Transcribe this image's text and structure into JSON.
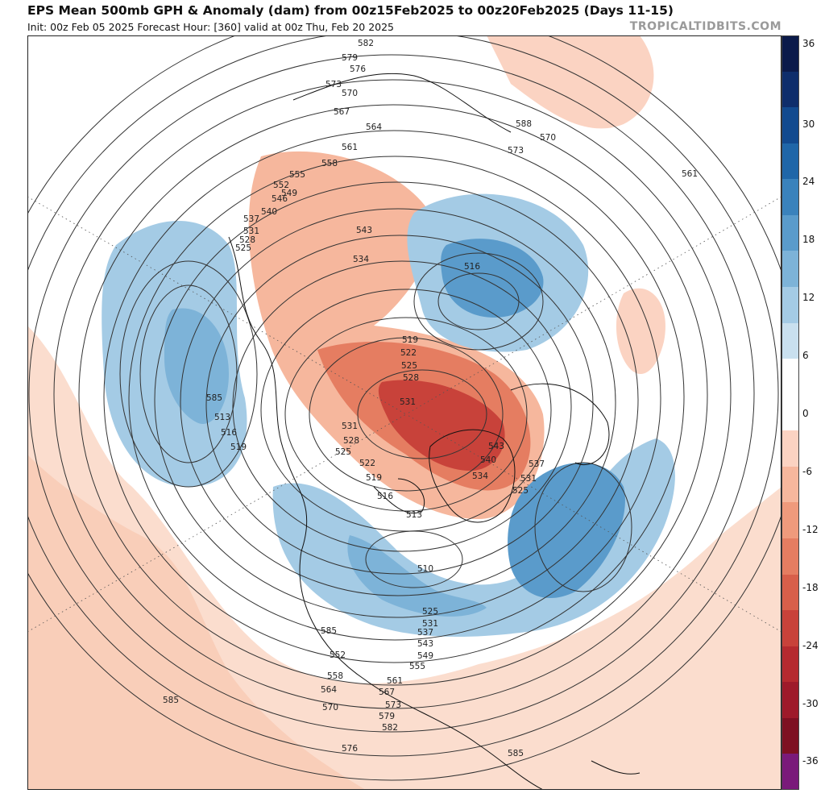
{
  "header": {
    "title": "EPS Mean 500mb GPH & Anomaly (dam) from 00z15Feb2025 to 00z20Feb2025 (Days 11-15)",
    "subtitle": "Init: 00z Feb 05 2025   Forecast Hour: [360]   valid at 00z Thu, Feb 20 2025",
    "watermark": "TROPICALTIDBITS.COM"
  },
  "colorbar": {
    "ticks": [
      "36",
      "30",
      "24",
      "18",
      "12",
      "6",
      "0",
      "-6",
      "-12",
      "-18",
      "-24",
      "-30",
      "-36"
    ],
    "colors": [
      "#0b1a4a",
      "#0e2d6b",
      "#124a8f",
      "#1f66a8",
      "#3a82bc",
      "#5a9bcb",
      "#7db3d8",
      "#a4cbe5",
      "#c9e0ef",
      "#ffffff",
      "#ffffff",
      "#fbd3c2",
      "#f6b79d",
      "#ef9a7c",
      "#e57d61",
      "#d85f4a",
      "#c8423a",
      "#b52a2f",
      "#9e1a2a",
      "#7e1022",
      "#7a1a7a"
    ]
  },
  "map": {
    "contour_labels": [
      "582",
      "579",
      "576",
      "573",
      "570",
      "567",
      "564",
      "561",
      "558",
      "555",
      "552",
      "549",
      "546",
      "543",
      "540",
      "537",
      "534",
      "531",
      "528",
      "525",
      "522",
      "519",
      "516",
      "513",
      "510",
      "585",
      "588"
    ]
  },
  "labels": [
    {
      "t": "582"
    },
    {
      "t": "579"
    },
    {
      "t": "576"
    },
    {
      "t": "573"
    },
    {
      "t": "570"
    },
    {
      "t": "567"
    },
    {
      "t": "564"
    },
    {
      "t": "561"
    },
    {
      "t": "558"
    },
    {
      "t": "555"
    },
    {
      "t": "552"
    },
    {
      "t": "549"
    },
    {
      "t": "546"
    },
    {
      "t": "540"
    },
    {
      "t": "537"
    },
    {
      "t": "531"
    },
    {
      "t": "528"
    },
    {
      "t": "525"
    },
    {
      "t": "543"
    },
    {
      "t": "534"
    },
    {
      "t": "516"
    },
    {
      "t": "519"
    },
    {
      "t": "522"
    },
    {
      "t": "525"
    },
    {
      "t": "528"
    },
    {
      "t": "531"
    },
    {
      "t": "531"
    },
    {
      "t": "528"
    },
    {
      "t": "525"
    },
    {
      "t": "522"
    },
    {
      "t": "519"
    },
    {
      "t": "516"
    },
    {
      "t": "513"
    },
    {
      "t": "543"
    },
    {
      "t": "540"
    },
    {
      "t": "537"
    },
    {
      "t": "534"
    },
    {
      "t": "531"
    },
    {
      "t": "525"
    },
    {
      "t": "510"
    },
    {
      "t": "525"
    },
    {
      "t": "531"
    },
    {
      "t": "537"
    },
    {
      "t": "543"
    },
    {
      "t": "549"
    },
    {
      "t": "555"
    },
    {
      "t": "561"
    },
    {
      "t": "567"
    },
    {
      "t": "573"
    },
    {
      "t": "579"
    },
    {
      "t": "582"
    },
    {
      "t": "585"
    },
    {
      "t": "552"
    },
    {
      "t": "558"
    },
    {
      "t": "564"
    },
    {
      "t": "570"
    },
    {
      "t": "576"
    },
    {
      "t": "585"
    },
    {
      "t": "585"
    },
    {
      "t": "588"
    },
    {
      "t": "570"
    },
    {
      "t": "573"
    },
    {
      "t": "561"
    },
    {
      "t": "585"
    },
    {
      "t": "513"
    },
    {
      "t": "516"
    },
    {
      "t": "519"
    },
    {
      "t": "522"
    }
  ]
}
